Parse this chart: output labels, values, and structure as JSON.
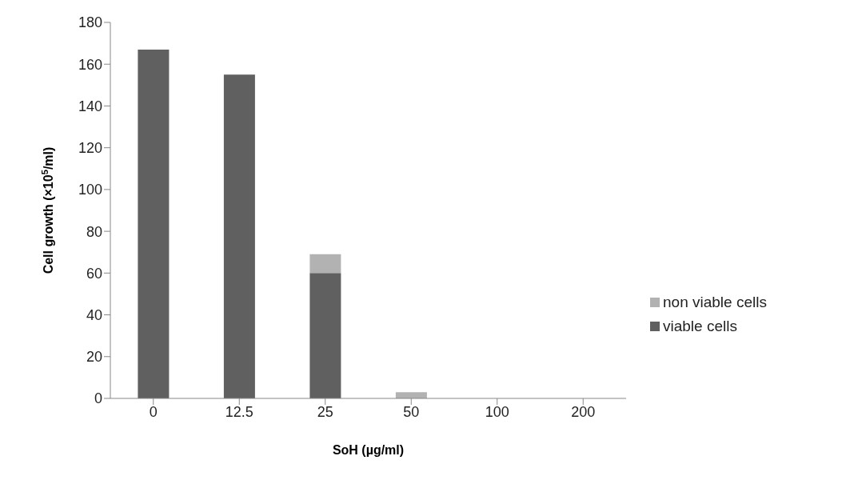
{
  "chart_data": {
    "type": "bar",
    "stacked": true,
    "xlabel": "SoH (µg/ml)",
    "ylabel": "Cell growth (×10$^{5}$/ml)",
    "categories": [
      "0",
      "12.5",
      "25",
      "50",
      "100",
      "200"
    ],
    "series": [
      {
        "name": "viable cells",
        "color": "#606060",
        "values": [
          167,
          155,
          60,
          0,
          0,
          0
        ]
      },
      {
        "name": "non viable cells",
        "color": "#b2b2b2",
        "values": [
          0,
          0,
          9,
          3,
          0,
          0
        ]
      }
    ],
    "ylim": [
      0,
      180
    ],
    "yticks": [
      0,
      20,
      40,
      60,
      80,
      100,
      120,
      140,
      160,
      180
    ],
    "grid": false,
    "legend": "right"
  }
}
